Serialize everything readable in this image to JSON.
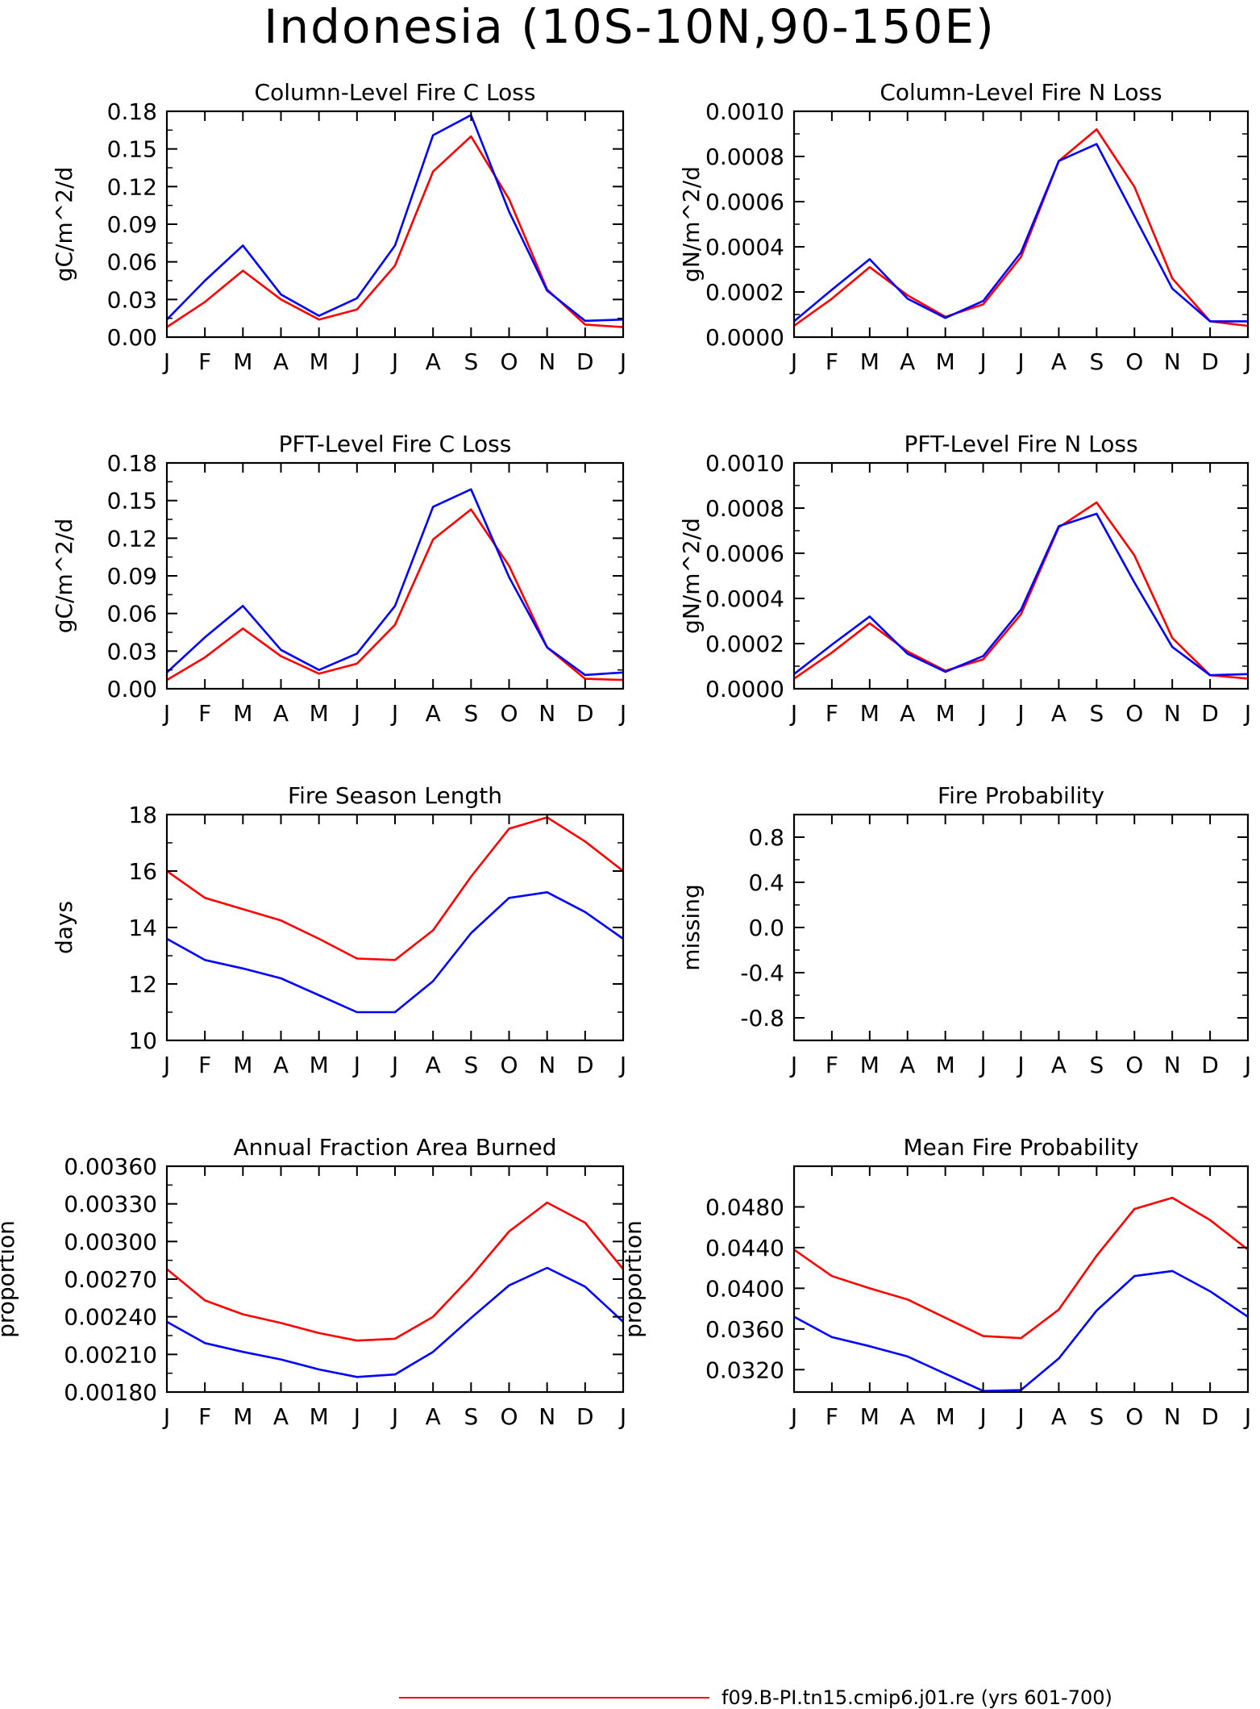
{
  "page_title": "Indonesia (10S-10N,90-150E)",
  "legend": {
    "entries": [
      {
        "label": "f09.B-PI.tn15.cmip6.j01.re (yrs 601-700)",
        "color": "#ff0000"
      }
    ]
  },
  "colors": {
    "red_series": "#ff0000",
    "blue_series": "#0000ff",
    "axis": "#000000"
  },
  "chart_data": [
    {
      "type": "line",
      "title": "Column-Level Fire C Loss",
      "ylabel": "gC/m^2/d",
      "xlabel": "",
      "categories": [
        "J",
        "F",
        "M",
        "A",
        "M",
        "J",
        "J",
        "A",
        "S",
        "O",
        "N",
        "D",
        "J"
      ],
      "ylim": [
        0,
        0.18
      ],
      "yticks": [
        0.0,
        0.03,
        0.06,
        0.09,
        0.12,
        0.15,
        0.18
      ],
      "ytick_labels": [
        "0.00",
        "0.03",
        "0.06",
        "0.09",
        "0.12",
        "0.15",
        "0.18"
      ],
      "grid": false,
      "series": [
        {
          "color": "#ff0000",
          "values": [
            0.008,
            0.028,
            0.053,
            0.03,
            0.014,
            0.022,
            0.057,
            0.132,
            0.16,
            0.11,
            0.038,
            0.01,
            0.008
          ]
        },
        {
          "color": "#0000ff",
          "values": [
            0.014,
            0.045,
            0.073,
            0.034,
            0.017,
            0.031,
            0.073,
            0.161,
            0.177,
            0.1,
            0.037,
            0.013,
            0.014
          ]
        }
      ]
    },
    {
      "type": "line",
      "title": "Column-Level Fire N Loss",
      "ylabel": "gN/m^2/d",
      "xlabel": "",
      "categories": [
        "J",
        "F",
        "M",
        "A",
        "M",
        "J",
        "J",
        "A",
        "S",
        "O",
        "N",
        "D",
        "J"
      ],
      "ylim": [
        0,
        0.001
      ],
      "yticks": [
        0.0,
        0.0002,
        0.0004,
        0.0006,
        0.0008,
        0.001
      ],
      "ytick_labels": [
        "0.0000",
        "0.0002",
        "0.0004",
        "0.0006",
        "0.0008",
        "0.0010"
      ],
      "grid": false,
      "series": [
        {
          "color": "#ff0000",
          "values": [
            5e-05,
            0.00017,
            0.00031,
            0.000185,
            9e-05,
            0.000145,
            0.000355,
            0.00078,
            0.00092,
            0.000665,
            0.00026,
            7e-05,
            5e-05
          ]
        },
        {
          "color": "#0000ff",
          "values": [
            7e-05,
            0.00021,
            0.000345,
            0.00017,
            8.5e-05,
            0.00016,
            0.000375,
            0.00078,
            0.000855,
            0.000535,
            0.000215,
            7e-05,
            7e-05
          ]
        }
      ]
    },
    {
      "type": "line",
      "title": "PFT-Level Fire C Loss",
      "ylabel": "gC/m^2/d",
      "xlabel": "",
      "categories": [
        "J",
        "F",
        "M",
        "A",
        "M",
        "J",
        "J",
        "A",
        "S",
        "O",
        "N",
        "D",
        "J"
      ],
      "ylim": [
        0,
        0.18
      ],
      "yticks": [
        0.0,
        0.03,
        0.06,
        0.09,
        0.12,
        0.15,
        0.18
      ],
      "ytick_labels": [
        "0.00",
        "0.03",
        "0.06",
        "0.09",
        "0.12",
        "0.15",
        "0.18"
      ],
      "grid": false,
      "series": [
        {
          "color": "#ff0000",
          "values": [
            0.007,
            0.025,
            0.048,
            0.026,
            0.012,
            0.02,
            0.051,
            0.119,
            0.143,
            0.098,
            0.033,
            0.008,
            0.007
          ]
        },
        {
          "color": "#0000ff",
          "values": [
            0.013,
            0.041,
            0.066,
            0.031,
            0.015,
            0.028,
            0.066,
            0.145,
            0.159,
            0.089,
            0.033,
            0.011,
            0.013
          ]
        }
      ]
    },
    {
      "type": "line",
      "title": "PFT-Level Fire N Loss",
      "ylabel": "gN/m^2/d",
      "xlabel": "",
      "categories": [
        "J",
        "F",
        "M",
        "A",
        "M",
        "J",
        "J",
        "A",
        "S",
        "O",
        "N",
        "D",
        "J"
      ],
      "ylim": [
        0,
        0.001
      ],
      "yticks": [
        0.0,
        0.0002,
        0.0004,
        0.0006,
        0.0008,
        0.001
      ],
      "ytick_labels": [
        "0.0000",
        "0.0002",
        "0.0004",
        "0.0006",
        "0.0008",
        "0.0010"
      ],
      "grid": false,
      "series": [
        {
          "color": "#ff0000",
          "values": [
            4.5e-05,
            0.00016,
            0.00029,
            0.000165,
            8e-05,
            0.00013,
            0.00033,
            0.000715,
            0.000825,
            0.00059,
            0.000225,
            6e-05,
            4.5e-05
          ]
        },
        {
          "color": "#0000ff",
          "values": [
            6.5e-05,
            0.000195,
            0.00032,
            0.000155,
            7.5e-05,
            0.000145,
            0.00035,
            0.00072,
            0.000775,
            0.00047,
            0.000185,
            6e-05,
            6.5e-05
          ]
        }
      ]
    },
    {
      "type": "line",
      "title": "Fire Season Length",
      "ylabel": "days",
      "xlabel": "",
      "categories": [
        "J",
        "F",
        "M",
        "A",
        "M",
        "J",
        "J",
        "A",
        "S",
        "O",
        "N",
        "D",
        "J"
      ],
      "ylim": [
        10,
        18
      ],
      "yticks": [
        10,
        12,
        14,
        16,
        18
      ],
      "ytick_labels": [
        "10",
        "12",
        "14",
        "16",
        "18"
      ],
      "grid": false,
      "series": [
        {
          "color": "#ff0000",
          "values": [
            16.0,
            15.05,
            14.65,
            14.25,
            13.6,
            12.9,
            12.85,
            13.9,
            15.8,
            17.5,
            17.9,
            17.05,
            16.0
          ]
        },
        {
          "color": "#0000ff",
          "values": [
            13.6,
            12.85,
            12.55,
            12.2,
            11.6,
            11.0,
            11.0,
            12.1,
            13.8,
            15.05,
            15.25,
            14.55,
            13.6
          ]
        }
      ]
    },
    {
      "type": "line",
      "title": "Fire Probability",
      "ylabel": "missing",
      "xlabel": "",
      "categories": [
        "J",
        "F",
        "M",
        "A",
        "M",
        "J",
        "J",
        "A",
        "S",
        "O",
        "N",
        "D",
        "J"
      ],
      "ylim": [
        -1.0,
        1.0
      ],
      "yticks": [
        -0.8,
        -0.4,
        0.0,
        0.4,
        0.8
      ],
      "ytick_labels": [
        "-0.8",
        "-0.4",
        "0.0",
        "0.4",
        "0.8"
      ],
      "grid": false,
      "series": []
    },
    {
      "type": "line",
      "title": "Annual Fraction Area Burned",
      "ylabel": "proportion",
      "xlabel": "",
      "categories": [
        "J",
        "F",
        "M",
        "A",
        "M",
        "J",
        "J",
        "A",
        "S",
        "O",
        "N",
        "D",
        "J"
      ],
      "ylim": [
        0.0018,
        0.0036
      ],
      "yticks": [
        0.0018,
        0.0021,
        0.0024,
        0.0027,
        0.003,
        0.0033,
        0.0036
      ],
      "ytick_labels": [
        "0.00180",
        "0.00210",
        "0.00240",
        "0.00270",
        "0.00300",
        "0.00330",
        "0.00360"
      ],
      "grid": false,
      "series": [
        {
          "color": "#ff0000",
          "values": [
            0.00278,
            0.00253,
            0.00242,
            0.00235,
            0.00227,
            0.00221,
            0.002225,
            0.0024,
            0.00272,
            0.00308,
            0.00331,
            0.00315,
            0.00278
          ]
        },
        {
          "color": "#0000ff",
          "values": [
            0.00236,
            0.00219,
            0.00212,
            0.00206,
            0.00198,
            0.00192,
            0.00194,
            0.00212,
            0.00239,
            0.00265,
            0.00279,
            0.00264,
            0.00236
          ]
        }
      ]
    },
    {
      "type": "line",
      "title": "Mean Fire Probability",
      "ylabel": "proportion",
      "xlabel": "",
      "categories": [
        "J",
        "F",
        "M",
        "A",
        "M",
        "J",
        "J",
        "A",
        "S",
        "O",
        "N",
        "D",
        "J"
      ],
      "ylim": [
        0.0298,
        0.052
      ],
      "yticks": [
        0.032,
        0.036,
        0.04,
        0.044,
        0.048
      ],
      "ytick_labels": [
        "0.0320",
        "0.0360",
        "0.0400",
        "0.0440",
        "0.0480"
      ],
      "grid": false,
      "series": [
        {
          "color": "#ff0000",
          "values": [
            0.0438,
            0.0412,
            0.04,
            0.0389,
            0.0371,
            0.0353,
            0.0351,
            0.0379,
            0.0432,
            0.0478,
            0.0489,
            0.0467,
            0.0438
          ]
        },
        {
          "color": "#0000ff",
          "values": [
            0.0372,
            0.0352,
            0.0343,
            0.0333,
            0.0316,
            0.0299,
            0.03,
            0.0331,
            0.0378,
            0.0412,
            0.0417,
            0.0397,
            0.0372
          ]
        }
      ]
    }
  ]
}
